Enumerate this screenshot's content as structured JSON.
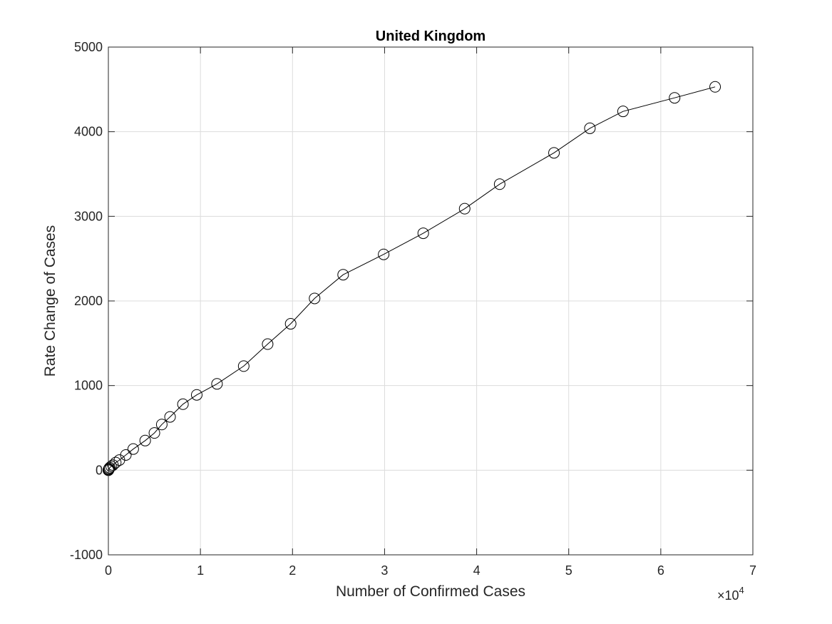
{
  "chart_data": {
    "type": "line",
    "title": "United Kingdom",
    "xlabel": "Number of Confirmed Cases",
    "ylabel": "Rate Change of Cases",
    "x_multiplier_label": "×10",
    "x_multiplier_exponent": "4",
    "xlim": [
      0,
      70000
    ],
    "ylim": [
      -1000,
      5000
    ],
    "x_ticks": [
      0,
      10000,
      20000,
      30000,
      40000,
      50000,
      60000,
      70000
    ],
    "x_tick_labels": [
      "0",
      "1",
      "2",
      "3",
      "4",
      "5",
      "6",
      "7"
    ],
    "y_ticks": [
      -1000,
      0,
      1000,
      2000,
      3000,
      4000,
      5000
    ],
    "y_tick_labels": [
      "-1000",
      "0",
      "1000",
      "2000",
      "3000",
      "4000",
      "5000"
    ],
    "grid": true,
    "marker": "circle",
    "line_color": "#000000",
    "series": [
      {
        "x": [
          2,
          8,
          20,
          40,
          80,
          150,
          300,
          500,
          800,
          1200,
          1900,
          2700,
          4000,
          5000,
          5800,
          6700,
          8100,
          9600,
          11800,
          14700,
          17300,
          19800,
          22400,
          25500,
          29900,
          34200,
          38700,
          42500,
          48400,
          52300,
          55900,
          61500,
          65900
        ],
        "y": [
          0,
          2,
          5,
          10,
          20,
          30,
          45,
          60,
          90,
          120,
          180,
          250,
          350,
          440,
          540,
          630,
          780,
          890,
          1020,
          1230,
          1490,
          1730,
          2030,
          2310,
          2550,
          2800,
          3090,
          3380,
          3750,
          4040,
          4240,
          4400,
          4530
        ]
      }
    ]
  }
}
